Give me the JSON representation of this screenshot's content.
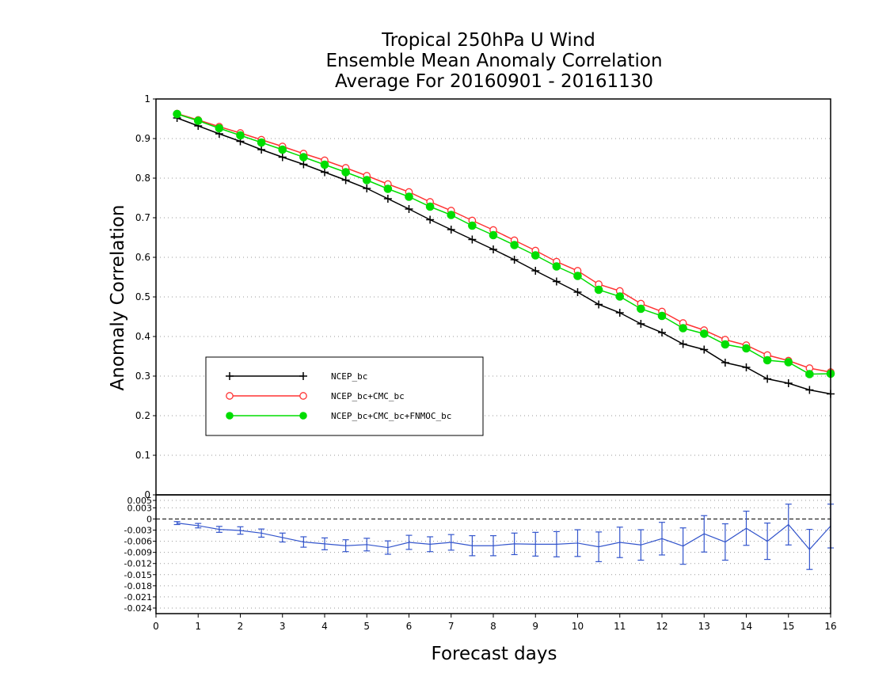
{
  "chart_data": [
    {
      "type": "line",
      "title": [
        "Tropical 250hPa U Wind",
        "Ensemble Mean Anomaly Correlation",
        "Average For 20160901 - 20161130"
      ],
      "xlabel": "Forecast days",
      "ylabel": "Anomaly Correlation",
      "xlim": [
        0,
        16
      ],
      "ylim": [
        0,
        1
      ],
      "xticks": [
        "0",
        "1",
        "2",
        "3",
        "4",
        "5",
        "6",
        "7",
        "8",
        "9",
        "10",
        "11",
        "12",
        "13",
        "14",
        "15",
        "16"
      ],
      "yticks": [
        "0",
        "0.1",
        "0.2",
        "0.3",
        "0.4",
        "0.5",
        "0.6",
        "0.7",
        "0.8",
        "0.9",
        "1"
      ],
      "grid": "dotted horizontal",
      "legend_position": "lower-left",
      "x": [
        0.5,
        1,
        1.5,
        2,
        2.5,
        3,
        3.5,
        4,
        4.5,
        5,
        5.5,
        6,
        6.5,
        7,
        7.5,
        8,
        8.5,
        9,
        9.5,
        10,
        10.5,
        11,
        11.5,
        12,
        12.5,
        13,
        13.5,
        14,
        14.5,
        15,
        15.5,
        16
      ],
      "series": [
        {
          "name": "NCEP_bc",
          "color": "#000000",
          "marker": "plus",
          "values": [
            0.952,
            0.932,
            0.912,
            0.893,
            0.872,
            0.853,
            0.835,
            0.815,
            0.795,
            0.774,
            0.748,
            0.722,
            0.695,
            0.67,
            0.645,
            0.62,
            0.594,
            0.566,
            0.539,
            0.512,
            0.481,
            0.46,
            0.432,
            0.41,
            0.381,
            0.367,
            0.334,
            0.322,
            0.293,
            0.282,
            0.265,
            0.255
          ]
        },
        {
          "name": "NCEP_bc+CMC_bc",
          "color": "#ff3333",
          "marker": "open-circle",
          "values": [
            0.963,
            0.947,
            0.93,
            0.914,
            0.897,
            0.88,
            0.862,
            0.845,
            0.826,
            0.806,
            0.785,
            0.765,
            0.74,
            0.718,
            0.693,
            0.669,
            0.643,
            0.617,
            0.589,
            0.566,
            0.532,
            0.515,
            0.483,
            0.463,
            0.434,
            0.416,
            0.392,
            0.378,
            0.353,
            0.339,
            0.32,
            0.31
          ]
        },
        {
          "name": "NCEP_bc+CMC_bc+FNMOC_bc",
          "color": "#00dd00",
          "marker": "filled-circle",
          "values": [
            0.962,
            0.945,
            0.926,
            0.908,
            0.89,
            0.872,
            0.853,
            0.834,
            0.815,
            0.795,
            0.773,
            0.753,
            0.728,
            0.707,
            0.68,
            0.656,
            0.631,
            0.605,
            0.577,
            0.553,
            0.518,
            0.501,
            0.47,
            0.452,
            0.421,
            0.407,
            0.38,
            0.37,
            0.34,
            0.335,
            0.305,
            0.306
          ]
        }
      ]
    },
    {
      "type": "line",
      "title": "",
      "xlim": [
        0,
        16
      ],
      "ylim": [
        -0.0255,
        0.0065
      ],
      "yticks": [
        "0.005",
        "0.003",
        "0",
        "-0.003",
        "-0.006",
        "-0.009",
        "-0.012",
        "-0.015",
        "-0.018",
        "-0.021",
        "-0.024"
      ],
      "zero_line": "dashed",
      "x": [
        0.5,
        1,
        1.5,
        2,
        2.5,
        3,
        3.5,
        4,
        4.5,
        5,
        5.5,
        6,
        6.5,
        7,
        7.5,
        8,
        8.5,
        9,
        9.5,
        10,
        10.5,
        11,
        11.5,
        12,
        12.5,
        13,
        13.5,
        14,
        14.5,
        15,
        15.5,
        16
      ],
      "series": [
        {
          "color": "#3355cc",
          "marker": "error-bar",
          "values": [
            -0.0011,
            -0.0018,
            -0.0028,
            -0.0031,
            -0.0038,
            -0.005,
            -0.0062,
            -0.0067,
            -0.0072,
            -0.0069,
            -0.0077,
            -0.0063,
            -0.0068,
            -0.0063,
            -0.0072,
            -0.0072,
            -0.0067,
            -0.0068,
            -0.0068,
            -0.0065,
            -0.0075,
            -0.0063,
            -0.007,
            -0.0053,
            -0.0073,
            -0.004,
            -0.0062,
            -0.0025,
            -0.006,
            -0.0015,
            -0.0082,
            -0.0019
          ],
          "err": [
            0.0004,
            0.0006,
            0.0008,
            0.001,
            0.0011,
            0.0012,
            0.0014,
            0.0016,
            0.0016,
            0.0017,
            0.0018,
            0.0019,
            0.002,
            0.0021,
            0.0027,
            0.0027,
            0.0029,
            0.0032,
            0.0034,
            0.0036,
            0.004,
            0.0041,
            0.0041,
            0.0044,
            0.0049,
            0.0049,
            0.0049,
            0.0046,
            0.0049,
            0.0055,
            0.0054,
            0.0059
          ]
        }
      ]
    }
  ]
}
